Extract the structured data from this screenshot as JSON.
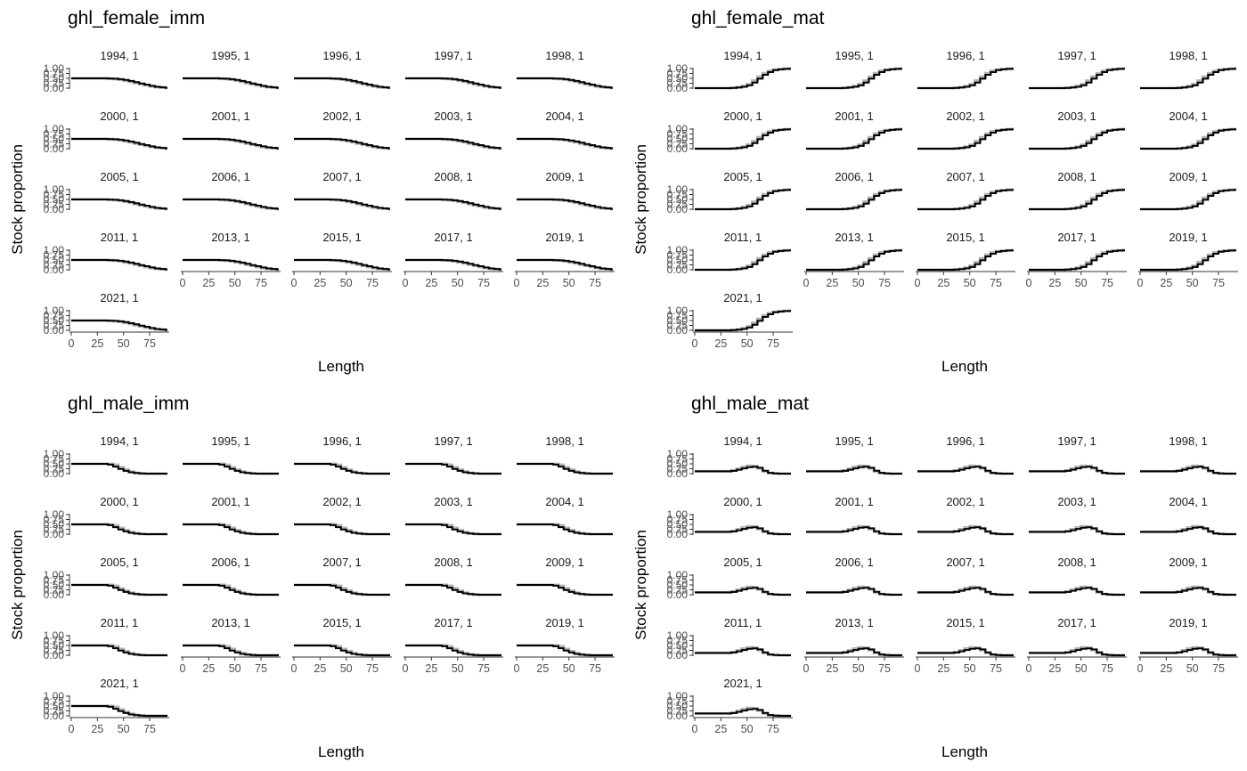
{
  "chart_data": [
    {
      "type": "line",
      "title": "ghl_female_imm",
      "xlabel": "Length",
      "ylabel": "Stock proportion",
      "xlim": [
        0,
        92
      ],
      "ylim": [
        0,
        1
      ],
      "x_ticks": [
        "0",
        "25",
        "50",
        "75"
      ],
      "y_ticks": [
        "0.00",
        "0.25",
        "0.50",
        "0.75",
        "1.00"
      ],
      "facets": [
        "1994, 1",
        "1995, 1",
        "1996, 1",
        "1997, 1",
        "1998, 1",
        "2000, 1",
        "2001, 1",
        "2002, 1",
        "2003, 1",
        "2004, 1",
        "2005, 1",
        "2006, 1",
        "2007, 1",
        "2008, 1",
        "2009, 1",
        "2011, 1",
        "2013, 1",
        "2015, 1",
        "2017, 1",
        "2019, 1",
        "2021, 1"
      ],
      "x": [
        0,
        5,
        10,
        15,
        20,
        25,
        30,
        35,
        40,
        45,
        50,
        55,
        60,
        65,
        70,
        75,
        80,
        85,
        90
      ],
      "series": [
        {
          "colour": "#000000",
          "values": [
            0.5,
            0.5,
            0.5,
            0.5,
            0.5,
            0.5,
            0.5,
            0.49,
            0.48,
            0.46,
            0.42,
            0.37,
            0.31,
            0.24,
            0.18,
            0.12,
            0.07,
            0.04,
            0.02
          ]
        },
        {
          "colour": "#b3b3b3",
          "values": [
            0.5,
            0.5,
            0.5,
            0.5,
            0.5,
            0.5,
            0.5,
            0.49,
            0.47,
            0.43,
            0.38,
            0.33,
            0.26,
            0.2,
            0.14,
            0.09,
            0.05,
            0.03,
            0.01
          ]
        }
      ]
    },
    {
      "type": "line",
      "title": "ghl_female_mat",
      "xlabel": "Length",
      "ylabel": "Stock proportion",
      "xlim": [
        0,
        92
      ],
      "ylim": [
        0,
        1
      ],
      "x_ticks": [
        "0",
        "25",
        "50",
        "75"
      ],
      "y_ticks": [
        "0.00",
        "0.25",
        "0.50",
        "0.75",
        "1.00"
      ],
      "facets": [
        "1994, 1",
        "1995, 1",
        "1996, 1",
        "1997, 1",
        "1998, 1",
        "2000, 1",
        "2001, 1",
        "2002, 1",
        "2003, 1",
        "2004, 1",
        "2005, 1",
        "2006, 1",
        "2007, 1",
        "2008, 1",
        "2009, 1",
        "2011, 1",
        "2013, 1",
        "2015, 1",
        "2017, 1",
        "2019, 1",
        "2021, 1"
      ],
      "x": [
        0,
        5,
        10,
        15,
        20,
        25,
        30,
        35,
        40,
        45,
        50,
        55,
        60,
        65,
        70,
        75,
        80,
        85,
        90
      ],
      "series": [
        {
          "colour": "#000000",
          "values": [
            0.0,
            0.0,
            0.0,
            0.0,
            0.0,
            0.0,
            0.0,
            0.01,
            0.03,
            0.07,
            0.14,
            0.28,
            0.48,
            0.68,
            0.82,
            0.92,
            0.96,
            0.98,
            0.99
          ]
        },
        {
          "colour": "#b3b3b3",
          "values": [
            0.0,
            0.0,
            0.0,
            0.0,
            0.0,
            0.0,
            0.0,
            0.01,
            0.04,
            0.1,
            0.2,
            0.38,
            0.58,
            0.76,
            0.88,
            0.94,
            0.97,
            0.99,
            1.0
          ]
        }
      ]
    },
    {
      "type": "line",
      "title": "ghl_male_imm",
      "xlabel": "Length",
      "ylabel": "Stock proportion",
      "xlim": [
        0,
        92
      ],
      "ylim": [
        0,
        1
      ],
      "x_ticks": [
        "0",
        "25",
        "50",
        "75"
      ],
      "y_ticks": [
        "0.00",
        "0.25",
        "0.50",
        "0.75",
        "1.00"
      ],
      "facets": [
        "1994, 1",
        "1995, 1",
        "1996, 1",
        "1997, 1",
        "1998, 1",
        "2000, 1",
        "2001, 1",
        "2002, 1",
        "2003, 1",
        "2004, 1",
        "2005, 1",
        "2006, 1",
        "2007, 1",
        "2008, 1",
        "2009, 1",
        "2011, 1",
        "2013, 1",
        "2015, 1",
        "2017, 1",
        "2019, 1",
        "2021, 1"
      ],
      "x": [
        0,
        5,
        10,
        15,
        20,
        25,
        30,
        35,
        40,
        45,
        50,
        55,
        60,
        65,
        70,
        75,
        80,
        85,
        90
      ],
      "series": [
        {
          "colour": "#000000",
          "values": [
            0.5,
            0.5,
            0.5,
            0.5,
            0.5,
            0.5,
            0.5,
            0.46,
            0.36,
            0.24,
            0.14,
            0.07,
            0.03,
            0.01,
            0.0,
            0.0,
            0.0,
            0.0,
            0.0
          ]
        },
        {
          "colour": "#b3b3b3",
          "values": [
            0.5,
            0.5,
            0.5,
            0.5,
            0.5,
            0.5,
            0.5,
            0.5,
            0.45,
            0.32,
            0.2,
            0.1,
            0.04,
            0.01,
            0.0,
            0.0,
            0.0,
            0.0,
            0.0
          ]
        }
      ]
    },
    {
      "type": "line",
      "title": "ghl_male_mat",
      "xlabel": "Length",
      "ylabel": "Stock proportion",
      "xlim": [
        0,
        92
      ],
      "ylim": [
        0,
        1
      ],
      "x_ticks": [
        "0",
        "25",
        "50",
        "75"
      ],
      "y_ticks": [
        "0.00",
        "0.25",
        "0.50",
        "0.75",
        "1.00"
      ],
      "facets": [
        "1994, 1",
        "1995, 1",
        "1996, 1",
        "1997, 1",
        "1998, 1",
        "2000, 1",
        "2001, 1",
        "2002, 1",
        "2003, 1",
        "2004, 1",
        "2005, 1",
        "2006, 1",
        "2007, 1",
        "2008, 1",
        "2009, 1",
        "2011, 1",
        "2013, 1",
        "2015, 1",
        "2017, 1",
        "2019, 1",
        "2021, 1"
      ],
      "x": [
        0,
        5,
        10,
        15,
        20,
        25,
        30,
        35,
        40,
        45,
        50,
        55,
        60,
        65,
        70,
        75,
        80,
        85,
        90
      ],
      "series": [
        {
          "colour": "#000000",
          "values": [
            0.12,
            0.12,
            0.12,
            0.12,
            0.12,
            0.12,
            0.12,
            0.14,
            0.2,
            0.27,
            0.33,
            0.35,
            0.3,
            0.15,
            0.04,
            0.01,
            0.0,
            0.0,
            0.0
          ]
        },
        {
          "colour": "#b3b3b3",
          "values": [
            0.12,
            0.12,
            0.12,
            0.12,
            0.12,
            0.12,
            0.12,
            0.16,
            0.25,
            0.34,
            0.4,
            0.38,
            0.27,
            0.12,
            0.03,
            0.01,
            0.0,
            0.0,
            0.0
          ]
        }
      ]
    }
  ]
}
